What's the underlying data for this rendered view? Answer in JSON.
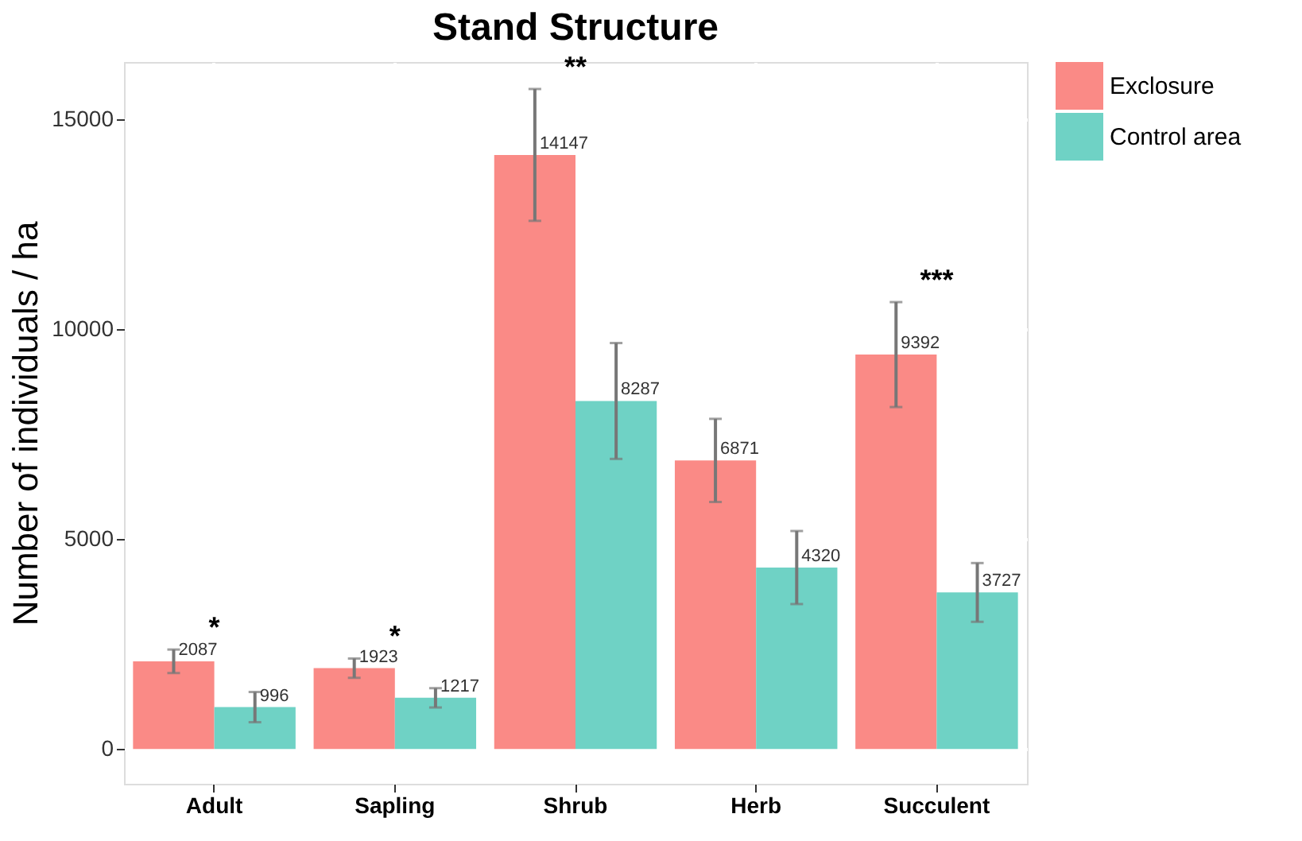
{
  "chart_data": {
    "type": "bar",
    "title": "Stand Structure",
    "ylabel": "Number of individuals / ha",
    "categories": [
      "Adult",
      "Sapling",
      "Shrub",
      "Herb",
      "Succulent"
    ],
    "series": [
      {
        "name": "Exclosure",
        "color": "#fa8a86",
        "values": [
          2087,
          1923,
          14147,
          6871,
          9392
        ],
        "errors": [
          280,
          230,
          1570,
          990,
          1250
        ]
      },
      {
        "name": "Control area",
        "color": "#6fd2c5",
        "values": [
          996,
          1217,
          8287,
          4320,
          3727
        ],
        "errors": [
          360,
          230,
          1380,
          870,
          700
        ]
      }
    ],
    "ylim": [
      -830,
      16360
    ],
    "yticks": [
      0,
      5000,
      10000,
      15000
    ],
    "grid": true,
    "legend": "right",
    "data_labels": true,
    "annotations": [
      "*",
      "*",
      "**",
      "***"
    ]
  }
}
